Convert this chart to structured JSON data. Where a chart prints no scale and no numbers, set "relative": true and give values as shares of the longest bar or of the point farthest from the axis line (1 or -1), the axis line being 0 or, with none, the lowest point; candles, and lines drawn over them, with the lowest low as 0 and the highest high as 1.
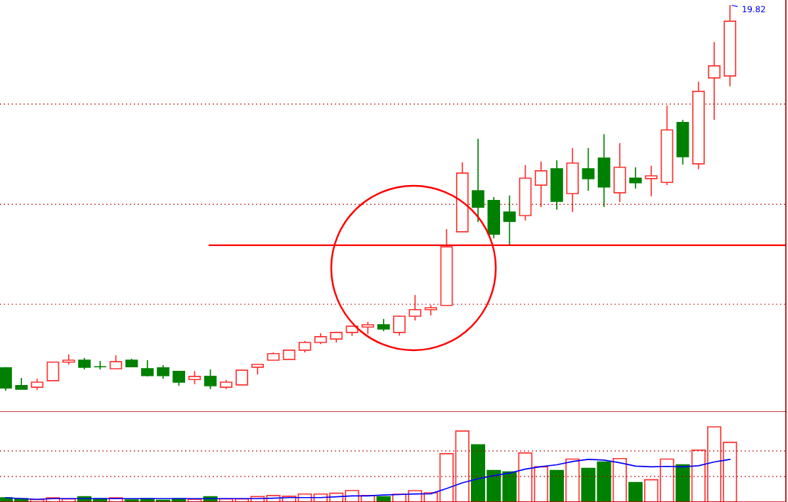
{
  "chart_data": [
    {
      "type": "candlestick",
      "relative": true,
      "categories": [
        null,
        null,
        null,
        null,
        null,
        null,
        null,
        null,
        null,
        null,
        null,
        null,
        null,
        null,
        null,
        null,
        null,
        null,
        null,
        null,
        null,
        null,
        null,
        null,
        null,
        null,
        null,
        null,
        null,
        null,
        null,
        null,
        null,
        null,
        null,
        null,
        null,
        null,
        null,
        null,
        null,
        null,
        null,
        null,
        null,
        null,
        null
      ],
      "ohlc": [
        [
          0.059,
          0.061,
          0,
          0.007
        ],
        [
          0.013,
          0.033,
          0.004,
          0.004
        ],
        [
          0.009,
          0.031,
          0.002,
          0.022
        ],
        [
          0.026,
          0.074,
          0.026,
          0.074
        ],
        [
          0.074,
          0.094,
          0.068,
          0.079
        ],
        [
          0.079,
          0.085,
          0.055,
          0.061
        ],
        [
          0.062,
          0.077,
          0.055,
          0.062
        ],
        [
          0.057,
          0.092,
          0.057,
          0.075
        ],
        [
          0.079,
          0.083,
          0.061,
          0.062
        ],
        [
          0.057,
          0.079,
          0.037,
          0.039
        ],
        [
          0.059,
          0.066,
          0.031,
          0.039
        ],
        [
          0.05,
          0.05,
          0.013,
          0.022
        ],
        [
          0.029,
          0.051,
          0.017,
          0.037
        ],
        [
          0.037,
          0.055,
          0.004,
          0.013
        ],
        [
          0.009,
          0.028,
          0.004,
          0.022
        ],
        [
          0.015,
          0.053,
          0.015,
          0.053
        ],
        [
          0.061,
          0.068,
          0.042,
          0.068
        ],
        [
          0.079,
          0.099,
          0.079,
          0.096
        ],
        [
          0.081,
          0.105,
          0.081,
          0.105
        ],
        [
          0.105,
          0.129,
          0.099,
          0.125
        ],
        [
          0.125,
          0.149,
          0.121,
          0.14
        ],
        [
          0.134,
          0.153,
          0.125,
          0.151
        ],
        [
          0.151,
          0.167,
          0.142,
          0.167
        ],
        [
          0.165,
          0.178,
          0.147,
          0.171
        ],
        [
          0.171,
          0.186,
          0.154,
          0.16
        ],
        [
          0.151,
          0.195,
          0.143,
          0.193
        ],
        [
          0.193,
          0.248,
          0.182,
          0.21
        ],
        [
          0.21,
          0.222,
          0.195,
          0.215
        ],
        [
          0.221,
          0.419,
          0.221,
          0.373
        ],
        [
          0.412,
          0.592,
          0.412,
          0.564
        ],
        [
          0.518,
          0.653,
          0.437,
          0.476
        ],
        [
          0.493,
          0.502,
          0.395,
          0.406
        ],
        [
          0.463,
          0.506,
          0.375,
          0.439
        ],
        [
          0.454,
          0.585,
          0.441,
          0.551
        ],
        [
          0.533,
          0.594,
          0.476,
          0.57
        ],
        [
          0.575,
          0.597,
          0.469,
          0.491
        ],
        [
          0.511,
          0.629,
          0.463,
          0.59
        ],
        [
          0.575,
          0.629,
          0.518,
          0.55
        ],
        [
          0.603,
          0.665,
          0.476,
          0.528
        ],
        [
          0.513,
          0.642,
          0.489,
          0.579
        ],
        [
          0.551,
          0.579,
          0.524,
          0.539
        ],
        [
          0.55,
          0.583,
          0.504,
          0.557
        ],
        [
          0.54,
          0.739,
          0.533,
          0.676
        ],
        [
          0.695,
          0.702,
          0.586,
          0.607
        ],
        [
          0.588,
          0.801,
          0.574,
          0.776
        ],
        [
          0.811,
          0.904,
          0.702,
          0.842
        ],
        [
          0.816,
          1,
          0.789,
          0.958
        ]
      ],
      "colors": [
        "#008000",
        "#008000",
        "#ff3232",
        "#ff3232",
        "#ff3232",
        "#008000",
        "#008000",
        "#ff3232",
        "#008000",
        "#008000",
        "#008000",
        "#008000",
        "#ff3232",
        "#008000",
        "#ff3232",
        "#ff3232",
        "#ff3232",
        "#ff3232",
        "#ff3232",
        "#ff3232",
        "#ff3232",
        "#ff3232",
        "#ff3232",
        "#ff3232",
        "#008000",
        "#ff3232",
        "#ff3232",
        "#ff3232",
        "#ff3232",
        "#ff3232",
        "#008000",
        "#008000",
        "#008000",
        "#ff3232",
        "#ff3232",
        "#008000",
        "#ff3232",
        "#008000",
        "#008000",
        "#ff3232",
        "#008000",
        "#ff3232",
        "#ff3232",
        "#008000",
        "#ff3232",
        "#ff3232",
        "#ff3232"
      ],
      "ref_lines": [
        {
          "axis": "y",
          "value": 0.377,
          "color": "#ff0000"
        },
        {
          "axis": "y",
          "value": 0.743,
          "color": "#b00000",
          "line_style": "dotted"
        },
        {
          "axis": "y",
          "value": 0.483,
          "color": "#b00000",
          "line_style": "dotted"
        },
        {
          "axis": "y",
          "value": 0.224,
          "color": "#b00000",
          "line_style": "dotted"
        }
      ],
      "annotations": [
        "19.82"
      ]
    },
    {
      "type": "bar",
      "relative": true,
      "ref_lines": [
        {
          "axis": "y",
          "value": 0.679,
          "color": "#b00000",
          "line_style": "dotted"
        },
        {
          "axis": "y",
          "value": 0.34,
          "color": "#b00000",
          "line_style": "dotted"
        }
      ],
      "categories": [
        null,
        null,
        null,
        null,
        null,
        null,
        null,
        null,
        null,
        null,
        null,
        null,
        null,
        null,
        null,
        null,
        null,
        null,
        null,
        null,
        null,
        null,
        null,
        null,
        null,
        null,
        null,
        null,
        null,
        null,
        null,
        null,
        null,
        null,
        null,
        null,
        null,
        null,
        null,
        null,
        null,
        null,
        null,
        null,
        null,
        null,
        null
      ],
      "series": [
        {
          "type": "bar",
          "values": [
            0.056,
            0.045,
            0.032,
            0.056,
            0.042,
            0.069,
            0.045,
            0.056,
            0.028,
            0.045,
            0.022,
            0.045,
            0.035,
            0.069,
            0.042,
            0.042,
            0.072,
            0.086,
            0.076,
            0.106,
            0.106,
            0.116,
            0.153,
            0.086,
            0.069,
            0.104,
            0.151,
            0.123,
            0.643,
            0.945,
            0.76,
            0.42,
            0.399,
            0.652,
            0.468,
            0.42,
            0.571,
            0.447,
            0.533,
            0.578,
            0.258,
            0.296,
            0.571,
            0.495,
            0.69,
            1,
            0.794
          ],
          "colors": [
            "#008000",
            "#008000",
            "#ff3232",
            "#ff3232",
            "#ff3232",
            "#008000",
            "#008000",
            "#ff3232",
            "#008000",
            "#008000",
            "#008000",
            "#008000",
            "#ff3232",
            "#008000",
            "#ff3232",
            "#ff3232",
            "#ff3232",
            "#ff3232",
            "#ff3232",
            "#ff3232",
            "#ff3232",
            "#ff3232",
            "#ff3232",
            "#ff3232",
            "#008000",
            "#ff3232",
            "#ff3232",
            "#ff3232",
            "#ff3232",
            "#ff3232",
            "#008000",
            "#008000",
            "#008000",
            "#ff3232",
            "#ff3232",
            "#008000",
            "#ff3232",
            "#008000",
            "#008000",
            "#ff3232",
            "#008000",
            "#ff3232",
            "#ff3232",
            "#008000",
            "#ff3232",
            "#ff3232",
            "#ff3232"
          ]
        },
        {
          "type": "line",
          "color": "#0000ff",
          "values": [
            0.057,
            0.045,
            0.035,
            0.045,
            0.045,
            0.045,
            0.045,
            0.045,
            0.045,
            0.045,
            0.045,
            0.045,
            0.045,
            0.045,
            0.045,
            0.045,
            0.045,
            0.051,
            0.059,
            0.059,
            0.059,
            0.069,
            0.082,
            0.082,
            0.093,
            0.099,
            0.107,
            0.11,
            0.18,
            0.255,
            0.309,
            0.35,
            0.385,
            0.437,
            0.471,
            0.495,
            0.539,
            0.567,
            0.558,
            0.523,
            0.477,
            0.468,
            0.474,
            0.468,
            0.482,
            0.533,
            0.567
          ]
        }
      ]
    }
  ]
}
